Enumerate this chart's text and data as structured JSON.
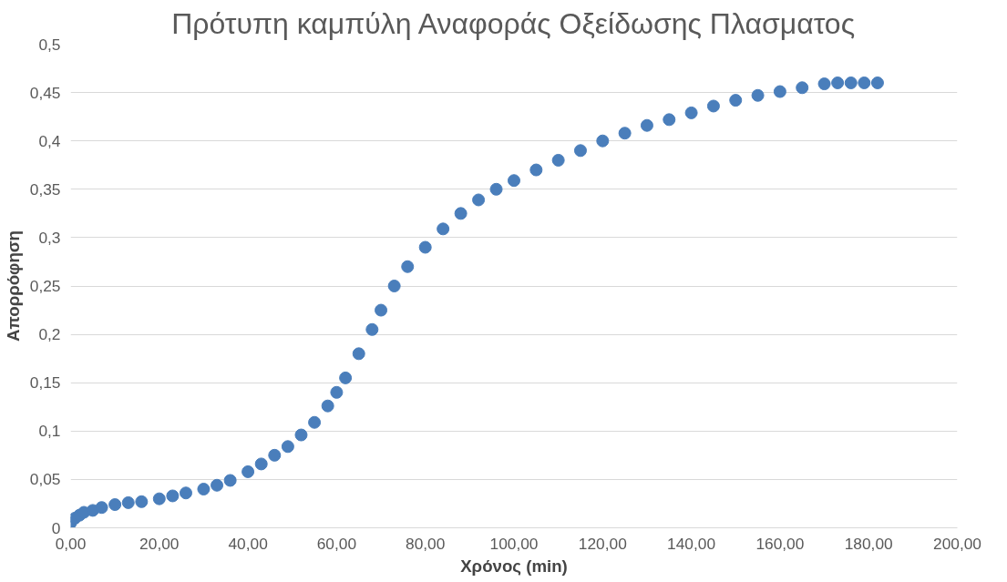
{
  "chart_data": {
    "type": "scatter",
    "title": "Πρότυπη καμπύλη Αναφοράς Οξείδωσης Πλασματος",
    "xlabel": "Χρόνος (min)",
    "ylabel": "Απορρόφηση",
    "x": [
      0,
      1,
      2,
      3,
      5,
      7,
      10,
      13,
      16,
      20,
      23,
      26,
      30,
      33,
      36,
      40,
      43,
      46,
      49,
      52,
      55,
      58,
      60,
      62,
      65,
      68,
      70,
      73,
      76,
      80,
      84,
      88,
      92,
      96,
      100,
      105,
      110,
      115,
      120,
      125,
      130,
      135,
      140,
      145,
      150,
      155,
      160,
      165,
      170,
      173,
      176,
      179,
      182
    ],
    "series": [
      {
        "color": "#4a7ebb",
        "values": [
          0.005,
          0.01,
          0.013,
          0.016,
          0.018,
          0.021,
          0.024,
          0.026,
          0.027,
          0.03,
          0.033,
          0.036,
          0.04,
          0.044,
          0.049,
          0.058,
          0.066,
          0.075,
          0.084,
          0.096,
          0.109,
          0.126,
          0.14,
          0.155,
          0.18,
          0.205,
          0.225,
          0.25,
          0.27,
          0.29,
          0.309,
          0.325,
          0.339,
          0.35,
          0.359,
          0.37,
          0.38,
          0.39,
          0.4,
          0.408,
          0.416,
          0.422,
          0.429,
          0.436,
          0.442,
          0.447,
          0.451,
          0.455,
          0.459,
          0.46,
          0.46,
          0.46,
          0.46
        ]
      }
    ],
    "xlim": [
      0,
      200
    ],
    "ylim": [
      0,
      0.5
    ],
    "xticks": [
      {
        "value": 0,
        "label": "0,00"
      },
      {
        "value": 20,
        "label": "20,00"
      },
      {
        "value": 40,
        "label": "40,00"
      },
      {
        "value": 60,
        "label": "60,00"
      },
      {
        "value": 80,
        "label": "80,00"
      },
      {
        "value": 100,
        "label": "100,00"
      },
      {
        "value": 120,
        "label": "120,00"
      },
      {
        "value": 140,
        "label": "140,00"
      },
      {
        "value": 160,
        "label": "160,00"
      },
      {
        "value": 180,
        "label": "180,00"
      },
      {
        "value": 200,
        "label": "200,00"
      }
    ],
    "yticks": [
      0,
      {
        "value": 0.05,
        "label": "0,05"
      },
      {
        "value": 0.1,
        "label": "0,1"
      },
      {
        "value": 0.15,
        "label": "0,15"
      },
      {
        "value": 0.2,
        "label": "0,2"
      },
      {
        "value": 0.25,
        "label": "0,25"
      },
      {
        "value": 0.3,
        "label": "0,3"
      },
      {
        "value": 0.35,
        "label": "0,35"
      },
      {
        "value": 0.4,
        "label": "0,4"
      },
      {
        "value": 0.45,
        "label": "0,45"
      },
      {
        "value": 0.5,
        "label": "0,5"
      }
    ],
    "grid": "y",
    "marker": "circle"
  }
}
